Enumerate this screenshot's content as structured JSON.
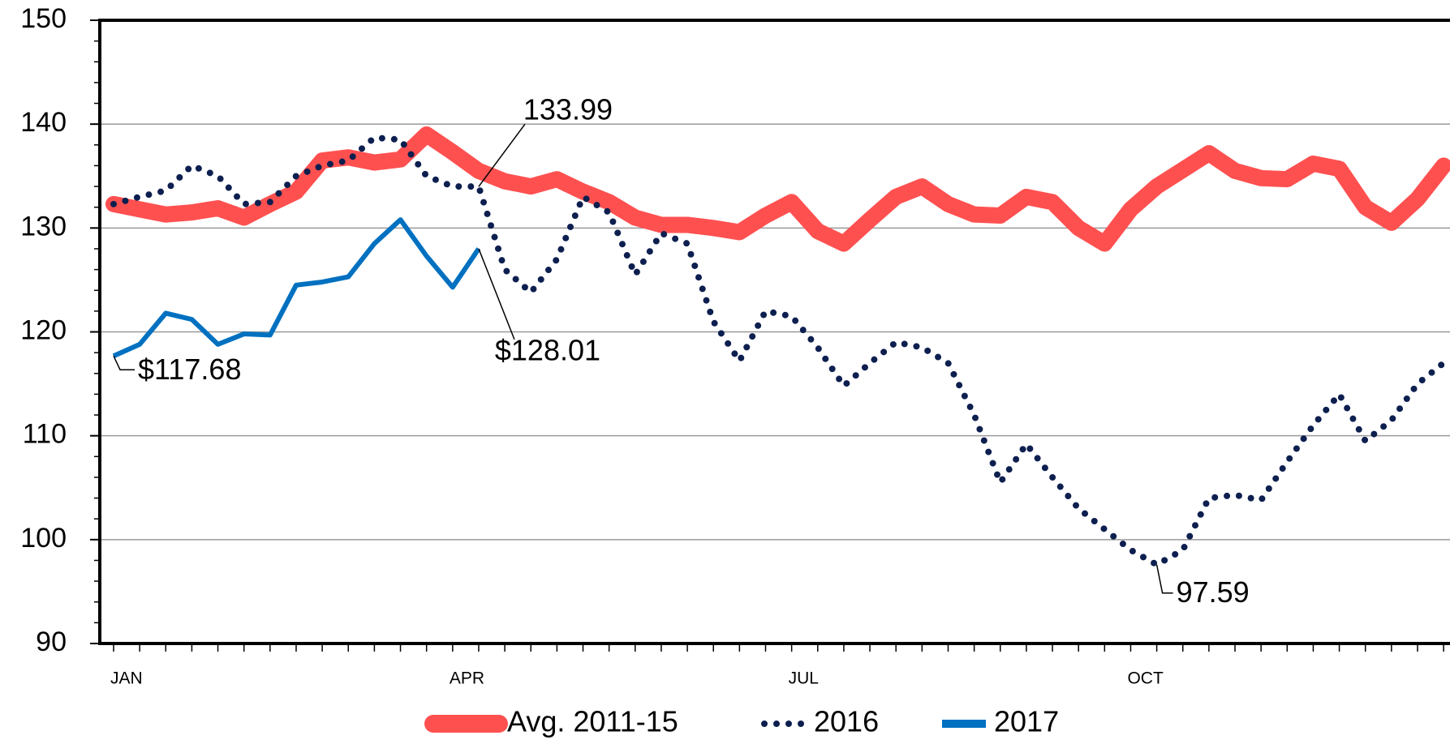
{
  "chart_data": {
    "type": "line",
    "categories": [
      "JAN",
      null,
      null,
      null,
      null,
      null,
      null,
      null,
      null,
      null,
      null,
      null,
      null,
      "APR",
      null,
      null,
      null,
      null,
      null,
      null,
      null,
      null,
      null,
      null,
      null,
      null,
      "JUL",
      null,
      null,
      null,
      null,
      null,
      null,
      null,
      null,
      null,
      null,
      null,
      null,
      "OCT",
      null,
      null,
      null,
      null,
      null,
      null,
      null,
      null,
      null,
      null,
      null,
      null
    ],
    "series": [
      {
        "name": "Avg. 2011-15",
        "color": "#ff5050",
        "style": "thick",
        "values": [
          132.3,
          131.8,
          131.3,
          131.5,
          131.9,
          131.0,
          132.3,
          133.5,
          136.5,
          136.8,
          136.3,
          136.6,
          139.0,
          137.3,
          135.5,
          134.5,
          134.0,
          134.7,
          133.5,
          132.5,
          131.0,
          130.3,
          130.3,
          130.0,
          129.6,
          131.2,
          132.5,
          129.7,
          128.5,
          130.8,
          133.0,
          134.0,
          132.3,
          131.3,
          131.2,
          133.0,
          132.5,
          130.0,
          128.5,
          131.8,
          134.0,
          135.6,
          137.2,
          135.5,
          134.8,
          134.7,
          136.2,
          135.7,
          132.0,
          130.5,
          132.8,
          136.0
        ]
      },
      {
        "name": "2016",
        "color": "#0d1f4f",
        "style": "dotted",
        "values": [
          132.3,
          133.0,
          133.6,
          136.0,
          135.0,
          132.3,
          132.5,
          135.0,
          136.0,
          136.5,
          138.7,
          138.5,
          135.0,
          134.0,
          133.99,
          126.0,
          123.8,
          127.0,
          133.0,
          131.5,
          125.5,
          129.5,
          128.5,
          121.0,
          117.2,
          122.0,
          121.5,
          118.5,
          114.8,
          117.0,
          119.0,
          118.5,
          117.0,
          112.0,
          105.5,
          109.2,
          106.0,
          103.0,
          101.0,
          99.0,
          97.59,
          99.0,
          104.0,
          104.3,
          103.8,
          107.5,
          111.0,
          114.0,
          109.5,
          111.5,
          115.0,
          117.0
        ],
        "value_labels": [
          null,
          null,
          null,
          null,
          null,
          null,
          null,
          null,
          null,
          null,
          null,
          null,
          null,
          null,
          "133.99",
          null,
          null,
          null,
          null,
          null,
          null,
          null,
          null,
          null,
          null,
          null,
          null,
          null,
          null,
          null,
          null,
          null,
          null,
          null,
          null,
          null,
          null,
          null,
          null,
          null,
          "97.59",
          null,
          null,
          null,
          null,
          null,
          null,
          null,
          null,
          null,
          null,
          null
        ]
      },
      {
        "name": "2017",
        "color": "#0070c0",
        "style": "solid",
        "values": [
          117.68,
          118.8,
          121.8,
          121.2,
          118.8,
          119.8,
          119.7,
          124.5,
          124.8,
          125.3,
          128.5,
          130.8,
          127.3,
          124.3,
          128.01,
          null,
          null,
          null,
          null,
          null,
          null,
          null,
          null,
          null,
          null,
          null,
          null,
          null,
          null,
          null,
          null,
          null,
          null,
          null,
          null,
          null,
          null,
          null,
          null,
          null,
          null,
          null,
          null,
          null,
          null,
          null,
          null,
          null,
          null,
          null,
          null,
          null
        ],
        "value_labels": [
          "$117.68",
          null,
          null,
          null,
          null,
          null,
          null,
          null,
          null,
          null,
          null,
          null,
          null,
          null,
          "$128.01",
          null,
          null,
          null,
          null,
          null,
          null,
          null,
          null,
          null,
          null,
          null,
          null,
          null,
          null,
          null,
          null,
          null,
          null,
          null,
          null,
          null,
          null,
          null,
          null,
          null,
          null,
          null,
          null,
          null,
          null,
          null,
          null,
          null,
          null,
          null,
          null,
          null
        ]
      }
    ],
    "ylim": [
      90,
      150
    ],
    "yticks": [
      90,
      100,
      110,
      120,
      130,
      140,
      150
    ],
    "grid": true,
    "legend": "bottom"
  }
}
